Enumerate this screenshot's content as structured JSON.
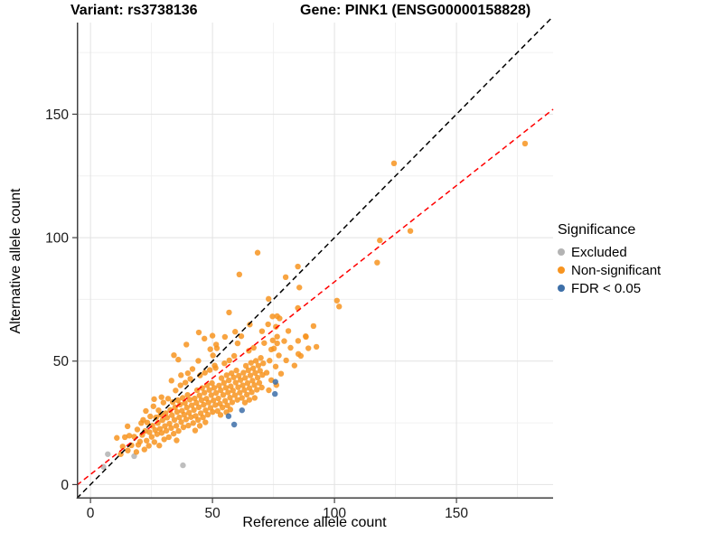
{
  "titles": {
    "variant": "Variant: rs3738136",
    "gene": "Gene: PINK1 (ENSG00000158828)"
  },
  "chart_data": {
    "type": "scatter",
    "title": "Variant: rs3738136  /  Gene: PINK1 (ENSG00000158828)",
    "xlabel": "Reference allele count",
    "ylabel": "Alternative allele count",
    "xlim": [
      -5.6,
      189.6
    ],
    "ylim": [
      -5.7,
      187.1
    ],
    "x_axis": {
      "major_ticks": [
        0,
        50,
        100,
        150
      ],
      "minor_gridlines": [
        25,
        75,
        125,
        175
      ]
    },
    "y_axis": {
      "major_ticks": [
        0,
        50,
        100,
        150
      ],
      "minor_gridlines": [
        25,
        75,
        125,
        175
      ]
    },
    "grid": "on",
    "legend": {
      "title": "Significance",
      "position": "right",
      "items": [
        {
          "label": "Excluded",
          "color": "#B3B3B3"
        },
        {
          "label": "Non-significant",
          "color": "#F79420"
        },
        {
          "label": "FDR < 0.05",
          "color": "#3D6FA8"
        }
      ]
    },
    "lines": [
      {
        "name": "identity-line",
        "type": "abline",
        "slope": 1,
        "intercept": 0,
        "color": "#000000",
        "dash": "dashed"
      },
      {
        "name": "fit-line",
        "type": "abline",
        "slope": 0.78,
        "intercept": 4.1,
        "color": "#FF0000",
        "dash": "dashed"
      }
    ],
    "series": [
      {
        "name": "Excluded",
        "color": "#B3B3B3",
        "points": [
          [
            5.3,
            7.2
          ],
          [
            7.1,
            12.3
          ],
          [
            17.9,
            11.5
          ],
          [
            37.9,
            7.8
          ]
        ]
      },
      {
        "name": "Non-significant",
        "color": "#F79420",
        "points": [
          [
            10.8,
            18.9
          ],
          [
            12.4,
            12.3
          ],
          [
            13.2,
            15.4
          ],
          [
            14.1,
            19.2
          ],
          [
            15.3,
            13.8
          ],
          [
            15.9,
            19.8
          ],
          [
            16.8,
            15.9
          ],
          [
            17.9,
            19.4
          ],
          [
            18.8,
            13.2
          ],
          [
            19.6,
            16.1
          ],
          [
            20.3,
            17.4
          ],
          [
            19.2,
            22.3
          ],
          [
            15.2,
            23.6
          ],
          [
            20.8,
            24.9
          ],
          [
            21.2,
            20.1
          ],
          [
            21.6,
            26.2
          ],
          [
            22.1,
            14.2
          ],
          [
            22.4,
            21.7
          ],
          [
            23.0,
            17.8
          ],
          [
            23.3,
            25.1
          ],
          [
            23.9,
            15.7
          ],
          [
            24.2,
            21.2
          ],
          [
            24.5,
            27.6
          ],
          [
            25.1,
            19.3
          ],
          [
            25.4,
            23.8
          ],
          [
            25.8,
            31.7
          ],
          [
            26.2,
            17.2
          ],
          [
            26.5,
            22.1
          ],
          [
            26.9,
            27.2
          ],
          [
            27.3,
            20.4
          ],
          [
            27.6,
            24.9
          ],
          [
            27.9,
            30.1
          ],
          [
            28.2,
            15.8
          ],
          [
            28.5,
            22.6
          ],
          [
            28.8,
            28.3
          ],
          [
            29.2,
            20.9
          ],
          [
            29.5,
            26.1
          ],
          [
            29.9,
            33.2
          ],
          [
            30.2,
            18.3
          ],
          [
            30.5,
            23.7
          ],
          [
            30.8,
            28.9
          ],
          [
            22.7,
            29.8
          ],
          [
            26.1,
            34.6
          ],
          [
            29.1,
            35.4
          ],
          [
            31.1,
            21.8
          ],
          [
            31.4,
            27.1
          ],
          [
            31.8,
            34.8
          ],
          [
            32.1,
            19.2
          ],
          [
            32.4,
            24.7
          ],
          [
            32.7,
            30.2
          ],
          [
            33.1,
            22.9
          ],
          [
            33.4,
            28.1
          ],
          [
            33.7,
            33.4
          ],
          [
            34.1,
            20.6
          ],
          [
            34.4,
            26.2
          ],
          [
            34.7,
            31.3
          ],
          [
            34.9,
            38.1
          ],
          [
            35.2,
            23.8
          ],
          [
            35.5,
            29.4
          ],
          [
            35.8,
            34.2
          ],
          [
            36.1,
            21.7
          ],
          [
            36.4,
            27.2
          ],
          [
            36.7,
            32.4
          ],
          [
            36.9,
            40.2
          ],
          [
            37.2,
            25.3
          ],
          [
            37.5,
            29.9
          ],
          [
            37.8,
            35.1
          ],
          [
            38.1,
            23.2
          ],
          [
            38.4,
            28.3
          ],
          [
            38.7,
            33.1
          ],
          [
            38.9,
            41.3
          ],
          [
            39.2,
            26.4
          ],
          [
            39.5,
            31.2
          ],
          [
            39.8,
            36.3
          ],
          [
            40.1,
            23.9
          ],
          [
            40.4,
            29.1
          ],
          [
            40.7,
            34.4
          ],
          [
            40.9,
            42.8
          ],
          [
            33.2,
            42.1
          ],
          [
            37.1,
            44.3
          ],
          [
            35.3,
            17.9
          ],
          [
            39.9,
            45.1
          ],
          [
            41.2,
            27.3
          ],
          [
            41.5,
            32.1
          ],
          [
            41.8,
            46.8
          ],
          [
            42.1,
            24.9
          ],
          [
            42.4,
            30.2
          ],
          [
            42.7,
            34.9
          ],
          [
            43.1,
            27.8
          ],
          [
            43.4,
            33.1
          ],
          [
            43.7,
            38.2
          ],
          [
            44.1,
            26.2
          ],
          [
            44.4,
            31.3
          ],
          [
            44.7,
            36.1
          ],
          [
            44.9,
            44.2
          ],
          [
            45.2,
            28.9
          ],
          [
            45.5,
            34.2
          ],
          [
            45.8,
            39.1
          ],
          [
            46.1,
            27.2
          ],
          [
            46.4,
            32.3
          ],
          [
            46.7,
            37.2
          ],
          [
            46.9,
            45.3
          ],
          [
            47.2,
            30.1
          ],
          [
            47.5,
            34.8
          ],
          [
            47.8,
            40.2
          ],
          [
            48.1,
            28.3
          ],
          [
            48.4,
            33.2
          ],
          [
            48.7,
            38.3
          ],
          [
            48.9,
            46.4
          ],
          [
            49.2,
            31.1
          ],
          [
            49.5,
            36.2
          ],
          [
            49.8,
            41.1
          ],
          [
            50.1,
            29.4
          ],
          [
            50.4,
            34.1
          ],
          [
            50.7,
            39.2
          ],
          [
            50.9,
            48.2
          ],
          [
            42.9,
            21.9
          ],
          [
            44.8,
            23.8
          ],
          [
            47.1,
            25.2
          ],
          [
            50.2,
            52.3
          ],
          [
            44.2,
            50.1
          ],
          [
            49.1,
            54.8
          ],
          [
            51.2,
            32.2
          ],
          [
            51.5,
            37.1
          ],
          [
            51.8,
            55.2
          ],
          [
            52.1,
            29.8
          ],
          [
            52.4,
            34.9
          ],
          [
            52.7,
            40.1
          ],
          [
            53.1,
            32.8
          ],
          [
            53.4,
            38.2
          ],
          [
            53.7,
            43.1
          ],
          [
            54.1,
            31.2
          ],
          [
            54.4,
            36.3
          ],
          [
            54.7,
            41.2
          ],
          [
            54.9,
            49.1
          ],
          [
            55.2,
            33.9
          ],
          [
            55.5,
            39.2
          ],
          [
            55.8,
            44.3
          ],
          [
            56.1,
            32.1
          ],
          [
            56.4,
            37.3
          ],
          [
            56.7,
            42.2
          ],
          [
            56.9,
            50.3
          ],
          [
            57.2,
            35.2
          ],
          [
            57.5,
            39.8
          ],
          [
            57.8,
            45.1
          ],
          [
            58.1,
            33.3
          ],
          [
            58.4,
            38.1
          ],
          [
            58.7,
            43.4
          ],
          [
            58.9,
            52.1
          ],
          [
            59.2,
            36.2
          ],
          [
            59.5,
            41.3
          ],
          [
            59.8,
            46.2
          ],
          [
            60.2,
            34.3
          ],
          [
            60.5,
            39.4
          ],
          [
            60.8,
            44.1
          ],
          [
            53.3,
            28.2
          ],
          [
            55.7,
            29.3
          ],
          [
            57.3,
            30.4
          ],
          [
            60.3,
            57.2
          ],
          [
            55.1,
            59.8
          ],
          [
            59.3,
            61.9
          ],
          [
            51.3,
            47.2
          ],
          [
            61.2,
            37.2
          ],
          [
            61.5,
            42.3
          ],
          [
            61.8,
            60.1
          ],
          [
            62.1,
            35.1
          ],
          [
            62.4,
            40.2
          ],
          [
            62.7,
            45.3
          ],
          [
            63.1,
            38.3
          ],
          [
            63.4,
            43.2
          ],
          [
            63.7,
            48.1
          ],
          [
            64.1,
            36.4
          ],
          [
            64.4,
            41.1
          ],
          [
            64.7,
            46.3
          ],
          [
            64.9,
            54.2
          ],
          [
            65.2,
            39.1
          ],
          [
            65.5,
            44.2
          ],
          [
            65.8,
            49.3
          ],
          [
            66.1,
            37.4
          ],
          [
            66.4,
            42.1
          ],
          [
            66.7,
            47.1
          ],
          [
            66.9,
            55.4
          ],
          [
            67.2,
            40.3
          ],
          [
            67.5,
            45.2
          ],
          [
            67.8,
            50.1
          ],
          [
            68.2,
            38.4
          ],
          [
            68.5,
            43.3
          ],
          [
            68.8,
            48.2
          ],
          [
            69.2,
            41.2
          ],
          [
            69.5,
            46.1
          ],
          [
            69.8,
            51.3
          ],
          [
            70.2,
            39.3
          ],
          [
            70.5,
            44.4
          ],
          [
            70.8,
            49.1
          ],
          [
            63.3,
            33.2
          ],
          [
            65.1,
            34.3
          ],
          [
            67.3,
            35.1
          ],
          [
            70.3,
            62.1
          ],
          [
            65.3,
            64.8
          ],
          [
            71.2,
            57.3
          ],
          [
            72.2,
            45.3
          ],
          [
            72.8,
            64.9
          ],
          [
            73.4,
            50.2
          ],
          [
            74.1,
            42.3
          ],
          [
            74.6,
            68.1
          ],
          [
            75.2,
            55.1
          ],
          [
            75.9,
            47.8
          ],
          [
            76.5,
            59.9
          ],
          [
            77.2,
            52.3
          ],
          [
            78.1,
            44.9
          ],
          [
            79.4,
            58.1
          ],
          [
            80.2,
            50.3
          ],
          [
            81.1,
            62.2
          ],
          [
            82.0,
            55.4
          ],
          [
            83.6,
            48.2
          ],
          [
            85.1,
            58.2
          ],
          [
            86.2,
            52.1
          ],
          [
            88.2,
            60.1
          ],
          [
            89.3,
            55.2
          ],
          [
            91.4,
            64.2
          ],
          [
            92.6,
            55.8
          ],
          [
            73.1,
            38.2
          ],
          [
            76.2,
            40.3
          ],
          [
            85.2,
            52.9
          ],
          [
            88.3,
            59.8
          ],
          [
            85.0,
            88.3
          ],
          [
            80.0,
            84.0
          ],
          [
            85.6,
            79.8
          ],
          [
            85.0,
            71.5
          ],
          [
            76.5,
            68.2
          ],
          [
            77.5,
            67.3
          ],
          [
            76.0,
            63.9
          ],
          [
            74.7,
            58.4
          ],
          [
            76.5,
            57.2
          ],
          [
            74.1,
            54.7
          ],
          [
            101.0,
            74.5
          ],
          [
            101.9,
            72.1
          ],
          [
            117.5,
            89.9
          ],
          [
            118.6,
            98.9
          ],
          [
            124.4,
            130.1
          ],
          [
            131.1,
            102.7
          ],
          [
            178.1,
            138.1
          ],
          [
            61.0,
            85.1
          ],
          [
            68.5,
            93.9
          ],
          [
            56.8,
            69.7
          ],
          [
            73.0,
            75.2
          ],
          [
            44.4,
            61.6
          ],
          [
            46.7,
            59.1
          ],
          [
            50.0,
            60.3
          ],
          [
            51.5,
            56.7
          ],
          [
            39.3,
            56.7
          ],
          [
            34.2,
            52.4
          ],
          [
            36.0,
            50.6
          ]
        ]
      },
      {
        "name": "FDR < 0.05",
        "color": "#3D6FA8",
        "points": [
          [
            56.6,
            27.7
          ],
          [
            58.9,
            24.3
          ],
          [
            62.1,
            30.1
          ],
          [
            75.8,
            41.6
          ],
          [
            75.6,
            36.7
          ]
        ]
      }
    ],
    "style": {
      "point_radius": 3.2,
      "point_opacity": 0.85,
      "grid_major_color": "#E2E2E2",
      "grid_minor_color": "#F0F0F0",
      "axis_line_color": "#404040",
      "tick_label_color": "#1A1A1A"
    }
  }
}
